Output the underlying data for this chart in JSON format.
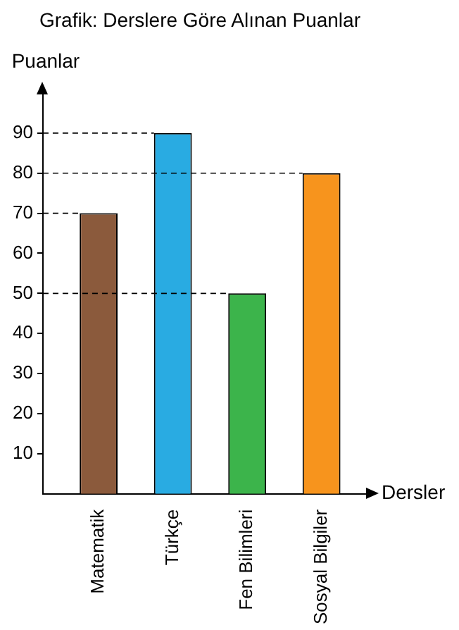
{
  "chart_data": {
    "type": "bar",
    "title": "Grafik: Derslere Göre Alınan Puanlar",
    "xlabel": "Dersler",
    "ylabel": "Puanlar",
    "categories": [
      "Matematik",
      "Türkçe",
      "Fen Bilimleri",
      "Sosyal Bilgiler"
    ],
    "values": [
      70,
      90,
      50,
      80
    ],
    "colors": [
      "#8b5a3c",
      "#29abe2",
      "#3cb44b",
      "#f7941d"
    ],
    "ylim": [
      0,
      100
    ],
    "yticks": [
      10,
      20,
      30,
      40,
      50,
      60,
      70,
      80,
      90
    ],
    "grid": false,
    "legend": false,
    "ref_lines": [
      {
        "axis": "y",
        "value": 90,
        "line_style": "dashed",
        "color": "#000000"
      },
      {
        "axis": "y",
        "value": 80,
        "line_style": "dashed",
        "color": "#000000"
      },
      {
        "axis": "y",
        "value": 70,
        "line_style": "dashed",
        "color": "#000000"
      },
      {
        "axis": "y",
        "value": 50,
        "line_style": "dashed",
        "color": "#000000"
      }
    ]
  }
}
